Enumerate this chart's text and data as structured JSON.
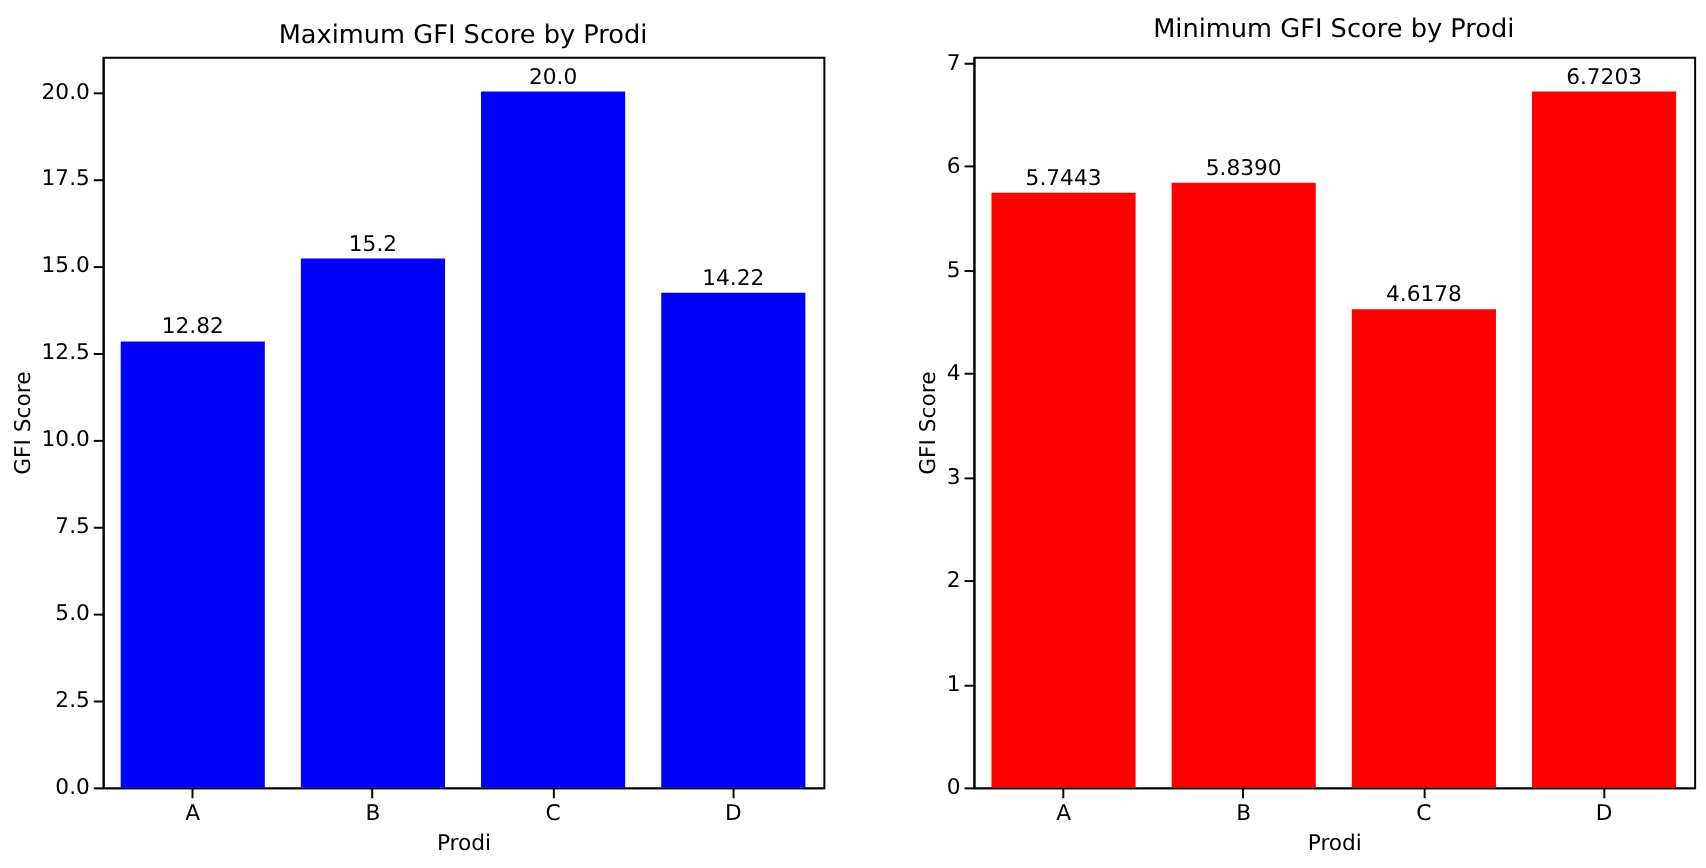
{
  "chart_data": [
    {
      "type": "bar",
      "title": "Maximum GFI Score by Prodi",
      "xlabel": "Prodi",
      "ylabel": "GFI Score",
      "categories": [
        "A",
        "B",
        "C",
        "D"
      ],
      "series": [
        {
          "color": "#0000ff",
          "values": [
            12.82,
            15.2,
            20.0,
            14.22
          ],
          "value_labels": [
            "12.82",
            "15.2",
            "20.0",
            "14.22"
          ]
        }
      ],
      "ylim": [
        0,
        21
      ],
      "yticks": [
        {
          "value": 0,
          "label": "0.0"
        },
        {
          "value": 2.5,
          "label": "2.5"
        },
        {
          "value": 5,
          "label": "5.0"
        },
        {
          "value": 7.5,
          "label": "7.5"
        },
        {
          "value": 10,
          "label": "10.0"
        },
        {
          "value": 12.5,
          "label": "12.5"
        },
        {
          "value": 15,
          "label": "15.0"
        },
        {
          "value": 17.5,
          "label": "17.5"
        },
        {
          "value": 20,
          "label": "20.0"
        }
      ],
      "grid": false
    },
    {
      "type": "bar",
      "title": "Minimum GFI Score by Prodi",
      "xlabel": "Prodi",
      "ylabel": "GFI Score",
      "categories": [
        "A",
        "B",
        "C",
        "D"
      ],
      "series": [
        {
          "color": "#ff0000",
          "values": [
            5.7443,
            5.839,
            4.6178,
            6.7203
          ],
          "value_labels": [
            "5.7443",
            "5.8390",
            "4.6178",
            "6.7203"
          ]
        }
      ],
      "ylim": [
        0,
        7.056
      ],
      "yticks": [
        0,
        1,
        2,
        3,
        4,
        5,
        6,
        7
      ],
      "grid": false
    }
  ]
}
